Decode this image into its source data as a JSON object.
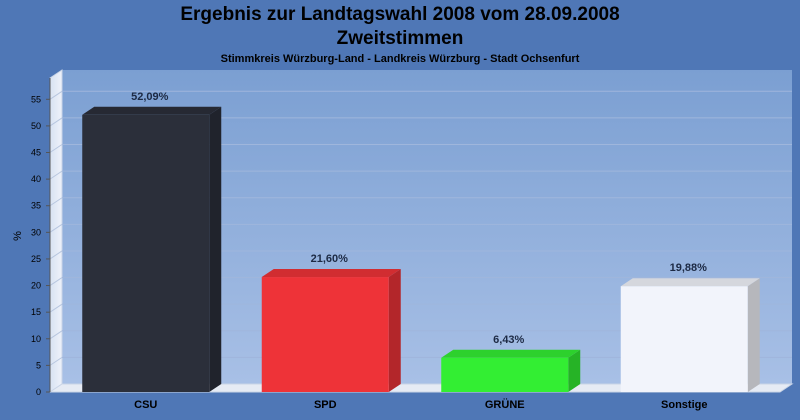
{
  "chart_data": {
    "type": "bar",
    "title": "Ergebnis zur Landtagswahl 2008 vom 28.09.2008",
    "subtitle": "Zweitstimmen",
    "caption": "Stimmkreis Würzburg-Land - Landkreis Würzburg - Stadt Ochsenfurt",
    "ylabel": "%",
    "ylim": [
      0,
      59
    ],
    "yticks": [
      0,
      5,
      10,
      15,
      20,
      25,
      30,
      35,
      40,
      45,
      50,
      55
    ],
    "categories": [
      "CSU",
      "SPD",
      "GRÜNE",
      "Sonstige"
    ],
    "values": [
      52.09,
      21.6,
      6.43,
      19.88
    ],
    "value_labels": [
      "52,09%",
      "21,60%",
      "6,43%",
      "19,88%"
    ],
    "colors": [
      "#2b2f3a",
      "#ee3338",
      "#33ee33",
      "#f2f4fb"
    ],
    "grid": true,
    "legend": "none"
  }
}
